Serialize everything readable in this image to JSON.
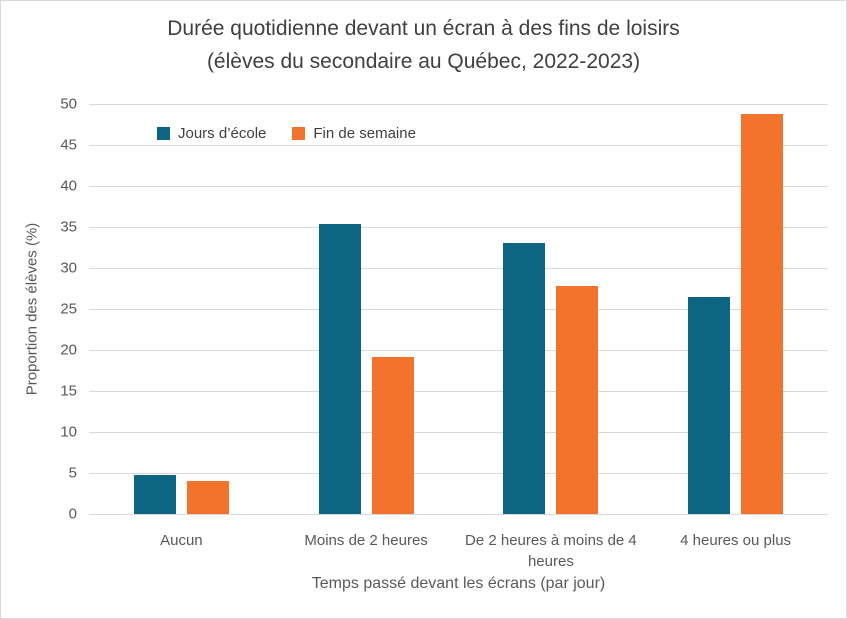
{
  "title_line1": "Durée quotidienne devant un écran à des fins de loisirs",
  "title_line2": "(élèves du secondaire au Québec, 2022-2023)",
  "chart_data": {
    "type": "bar",
    "title": "Durée quotidienne devant un écran à des fins de loisirs (élèves du secondaire au Québec, 2022-2023)",
    "categories": [
      "Aucun",
      "Moins de 2 heures",
      "De 2 heures à moins de 4 heures",
      "4 heures ou plus"
    ],
    "series": [
      {
        "name": "Jours d’école",
        "color": "#0D6584",
        "values": [
          4.8,
          35.4,
          33.0,
          26.5
        ]
      },
      {
        "name": "Fin de semaine",
        "color": "#F4732C",
        "values": [
          4.0,
          19.1,
          27.8,
          48.8
        ]
      }
    ],
    "xlabel": "Temps passé devant les écrans (par jour)",
    "ylabel": "Proportion des élèves (%)",
    "ylim": [
      0,
      50
    ],
    "ytick_step": 5,
    "yticks": [
      0,
      5,
      10,
      15,
      20,
      25,
      30,
      35,
      40,
      45,
      50
    ],
    "grid": true,
    "legend_position": "top-left-inside"
  },
  "colors": {
    "grid": "#d9d9d9",
    "axis_text": "#595959",
    "title_text": "#404040"
  }
}
